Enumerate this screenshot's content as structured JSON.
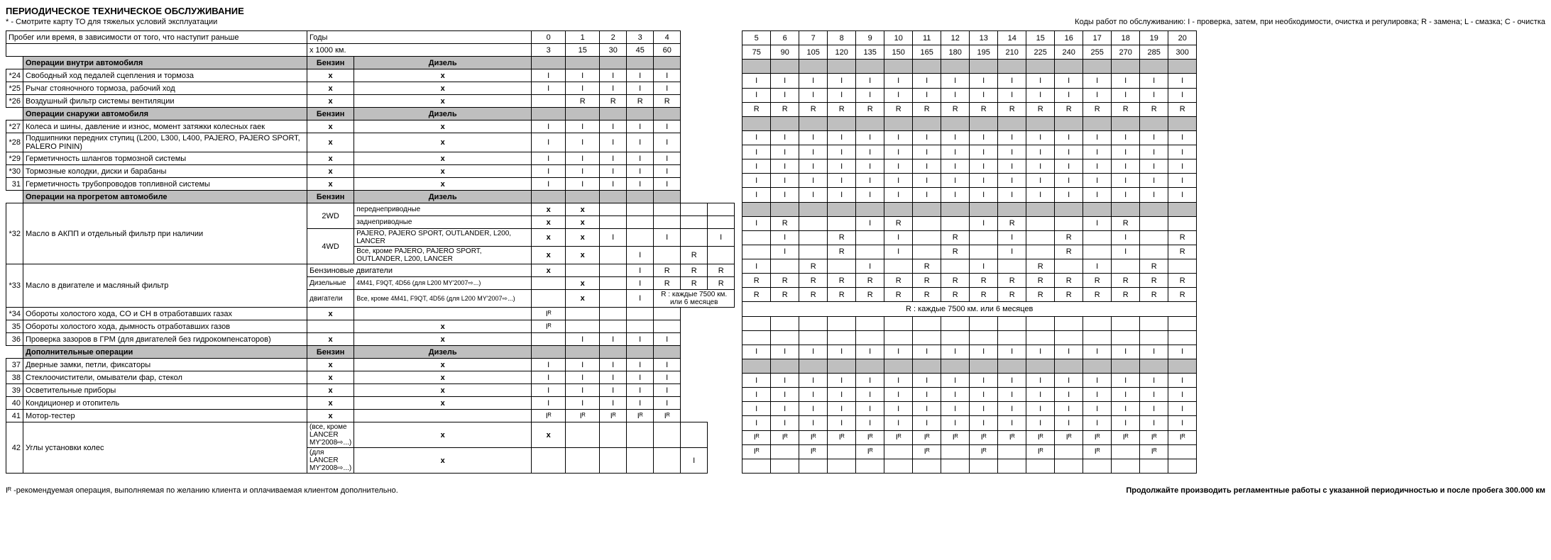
{
  "title": "ПЕРИОДИЧЕСКОЕ ТЕХНИЧЕСКОЕ ОБСЛУЖИВАНИЕ",
  "subtitle": "* - Смотрите карту ТО для тяжелых условий эксплуатации",
  "legend": "Коды работ по обслуживанию: I - проверка, затем, при необходимости, очистка и регулировка;  R - замена;  L - смазка;  C - очистка",
  "header_mileage": "Пробег или время, в зависимости от того, что наступит раньше",
  "header_years": "Годы",
  "header_km": "х 1000 км.",
  "fuel_b": "Бензин",
  "fuel_d": "Дизель",
  "years_left": [
    "0",
    "1",
    "2",
    "3",
    "4"
  ],
  "years_right": [
    "5",
    "6",
    "7",
    "8",
    "9",
    "10",
    "11",
    "12",
    "13",
    "14",
    "15",
    "16",
    "17",
    "18",
    "19",
    "20"
  ],
  "km_left": [
    "3",
    "15",
    "30",
    "45",
    "60"
  ],
  "km_right": [
    "75",
    "90",
    "105",
    "120",
    "135",
    "150",
    "165",
    "180",
    "195",
    "210",
    "225",
    "240",
    "255",
    "270",
    "285",
    "300"
  ],
  "sections": {
    "s1": "Операции внутри автомобиля",
    "s2": "Операции снаружи автомобиля",
    "s3": "Операции на прогретом автомобиле",
    "s4": "Дополнительные операции"
  },
  "rows": [
    {
      "n": "*24",
      "desc": "Свободный ход педалей сцепления и тормоза",
      "b": "x",
      "d": "x",
      "l": [
        "I",
        "I",
        "I",
        "I",
        "I"
      ],
      "r": [
        "I",
        "I",
        "I",
        "I",
        "I",
        "I",
        "I",
        "I",
        "I",
        "I",
        "I",
        "I",
        "I",
        "I",
        "I",
        "I"
      ]
    },
    {
      "n": "*25",
      "desc": "Рычаг стояночного тормоза, рабочий ход",
      "b": "x",
      "d": "x",
      "l": [
        "I",
        "I",
        "I",
        "I",
        "I"
      ],
      "r": [
        "I",
        "I",
        "I",
        "I",
        "I",
        "I",
        "I",
        "I",
        "I",
        "I",
        "I",
        "I",
        "I",
        "I",
        "I",
        "I"
      ]
    },
    {
      "n": "*26",
      "desc": "Воздушный фильтр системы вентиляции",
      "b": "x",
      "d": "x",
      "l": [
        "",
        "R",
        "R",
        "R",
        "R"
      ],
      "r": [
        "R",
        "R",
        "R",
        "R",
        "R",
        "R",
        "R",
        "R",
        "R",
        "R",
        "R",
        "R",
        "R",
        "R",
        "R",
        "R"
      ]
    },
    {
      "n": "*27",
      "desc": "Колеса и шины, давление и износ, момент затяжки колесных гаек",
      "b": "x",
      "d": "x",
      "l": [
        "I",
        "I",
        "I",
        "I",
        "I"
      ],
      "r": [
        "I",
        "I",
        "I",
        "I",
        "I",
        "I",
        "I",
        "I",
        "I",
        "I",
        "I",
        "I",
        "I",
        "I",
        "I",
        "I"
      ]
    },
    {
      "n": "*28",
      "desc": "Подшипники передних ступиц (L200, L300, L400, PAJERO, PAJERO SPORT, PALERO PININ)",
      "b": "x",
      "d": "x",
      "l": [
        "I",
        "I",
        "I",
        "I",
        "I"
      ],
      "r": [
        "I",
        "I",
        "I",
        "I",
        "I",
        "I",
        "I",
        "I",
        "I",
        "I",
        "I",
        "I",
        "I",
        "I",
        "I",
        "I"
      ]
    },
    {
      "n": "*29",
      "desc": "Герметичность шлангов тормозной системы",
      "b": "x",
      "d": "x",
      "l": [
        "I",
        "I",
        "I",
        "I",
        "I"
      ],
      "r": [
        "I",
        "I",
        "I",
        "I",
        "I",
        "I",
        "I",
        "I",
        "I",
        "I",
        "I",
        "I",
        "I",
        "I",
        "I",
        "I"
      ]
    },
    {
      "n": "*30",
      "desc": "Тормозные колодки, диски и барабаны",
      "b": "x",
      "d": "x",
      "l": [
        "I",
        "I",
        "I",
        "I",
        "I"
      ],
      "r": [
        "I",
        "I",
        "I",
        "I",
        "I",
        "I",
        "I",
        "I",
        "I",
        "I",
        "I",
        "I",
        "I",
        "I",
        "I",
        "I"
      ]
    },
    {
      "n": "31",
      "desc": "Герметичность трубопроводов топливной системы",
      "b": "x",
      "d": "x",
      "l": [
        "I",
        "I",
        "I",
        "I",
        "I"
      ],
      "r": [
        "I",
        "I",
        "I",
        "I",
        "I",
        "I",
        "I",
        "I",
        "I",
        "I",
        "I",
        "I",
        "I",
        "I",
        "I",
        "I"
      ]
    }
  ],
  "row32": {
    "n": "*32",
    "label": "Масло в АКПП и отдельный фильтр при наличии",
    "sub": [
      {
        "dr": "2WD",
        "veh": "переднеприводные",
        "b": "x",
        "d": "x",
        "l": [
          "",
          "",
          "",
          "",
          ""
        ],
        "r": [
          "I",
          "R",
          "",
          "",
          "I",
          "R",
          "",
          "",
          "I",
          "R",
          "",
          "",
          "I",
          "R",
          "",
          ""
        ]
      },
      {
        "dr": "",
        "veh": "заднеприводные",
        "b": "x",
        "d": "x",
        "l": [
          "",
          "",
          "",
          "",
          ""
        ],
        "r": [
          "",
          "I",
          "",
          "R",
          "",
          "I",
          "",
          "R",
          "",
          "I",
          "",
          "R",
          "",
          "I",
          "",
          "R"
        ]
      },
      {
        "dr": "4WD",
        "veh": "PAJERO, PAJERO SPORT, OUTLANDER, L200, LANCER",
        "b": "x",
        "d": "x",
        "l": [
          "I",
          "",
          "I",
          "",
          "I"
        ],
        "r": [
          "",
          "I",
          "",
          "R",
          "",
          "I",
          "",
          "R",
          "",
          "I",
          "",
          "R",
          "",
          "I",
          "",
          "R"
        ]
      },
      {
        "dr": "",
        "veh": "Все, кроме PAJERO, PAJERO SPORT, OUTLANDER, L200, LANCER",
        "b": "x",
        "d": "x",
        "l": [
          "",
          "I",
          "",
          "R",
          ""
        ],
        "r": [
          "I",
          "",
          "R",
          "",
          "I",
          "",
          "R",
          "",
          "I",
          "",
          "R",
          "",
          "I",
          "",
          "R",
          ""
        ]
      }
    ]
  },
  "row33": {
    "n": "*33",
    "label": "Масло в двигателе и масляный фильтр",
    "sub": [
      {
        "type": "Бензиновые двигатели",
        "b": "x",
        "d": "",
        "l": [
          "",
          "I",
          "R",
          "R",
          "R"
        ],
        "r": [
          "R",
          "R",
          "R",
          "R",
          "R",
          "R",
          "R",
          "R",
          "R",
          "R",
          "R",
          "R",
          "R",
          "R",
          "R",
          "R"
        ]
      },
      {
        "type": "Дизельные",
        "eng": "4M41, F9QT, 4D56 (для L200 MY'2007⇨...)",
        "b": "",
        "d": "x",
        "l": [
          "",
          "I",
          "R",
          "R",
          "R"
        ],
        "r": [
          "R",
          "R",
          "R",
          "R",
          "R",
          "R",
          "R",
          "R",
          "R",
          "R",
          "R",
          "R",
          "R",
          "R",
          "R",
          "R"
        ]
      },
      {
        "type": "двигатели",
        "eng": "Все, кроме 4M41, F9QT, 4D56 (для L200 MY'2007⇨...)",
        "b": "",
        "d": "x",
        "l": [
          "",
          "I"
        ],
        "l_merged": "R : каждые 7500 км. или 6 месяцев",
        "r_merged": "R : каждые 7500 км. или 6 месяцев"
      }
    ]
  },
  "rows2": [
    {
      "n": "*34",
      "desc": "Обороты холостого хода, CO и CH в отработавших газах",
      "b": "x",
      "d": "",
      "l": [
        "Iᴿ",
        "",
        "",
        "",
        ""
      ],
      "r": [
        "",
        "",
        "",
        "",
        "",
        "",
        "",
        "",
        "",
        "",
        "",
        "",
        "",
        "",
        "",
        ""
      ]
    },
    {
      "n": "35",
      "desc": "Обороты холостого хода, дымность отработавших газов",
      "b": "",
      "d": "x",
      "l": [
        "Iᴿ",
        "",
        "",
        "",
        ""
      ],
      "r": [
        "",
        "",
        "",
        "",
        "",
        "",
        "",
        "",
        "",
        "",
        "",
        "",
        "",
        "",
        "",
        ""
      ]
    },
    {
      "n": "36",
      "desc": "Проверка зазоров в ГРМ (для двигателей без гидрокомпенсаторов)",
      "b": "x",
      "d": "x",
      "l": [
        "",
        "I",
        "I",
        "I",
        "I"
      ],
      "r": [
        "I",
        "I",
        "I",
        "I",
        "I",
        "I",
        "I",
        "I",
        "I",
        "I",
        "I",
        "I",
        "I",
        "I",
        "I",
        "I"
      ]
    }
  ],
  "rows3": [
    {
      "n": "37",
      "desc": "Дверные замки, петли, фиксаторы",
      "b": "x",
      "d": "x",
      "l": [
        "I",
        "I",
        "I",
        "I",
        "I"
      ],
      "r": [
        "I",
        "I",
        "I",
        "I",
        "I",
        "I",
        "I",
        "I",
        "I",
        "I",
        "I",
        "I",
        "I",
        "I",
        "I",
        "I"
      ]
    },
    {
      "n": "38",
      "desc": "Стеклоочистители, омыватели фар, стекол",
      "b": "x",
      "d": "x",
      "l": [
        "I",
        "I",
        "I",
        "I",
        "I"
      ],
      "r": [
        "I",
        "I",
        "I",
        "I",
        "I",
        "I",
        "I",
        "I",
        "I",
        "I",
        "I",
        "I",
        "I",
        "I",
        "I",
        "I"
      ]
    },
    {
      "n": "39",
      "desc": "Осветительные приборы",
      "b": "x",
      "d": "x",
      "l": [
        "I",
        "I",
        "I",
        "I",
        "I"
      ],
      "r": [
        "I",
        "I",
        "I",
        "I",
        "I",
        "I",
        "I",
        "I",
        "I",
        "I",
        "I",
        "I",
        "I",
        "I",
        "I",
        "I"
      ]
    },
    {
      "n": "40",
      "desc": "Кондиционер и отопитель",
      "b": "x",
      "d": "x",
      "l": [
        "I",
        "I",
        "I",
        "I",
        "I"
      ],
      "r": [
        "I",
        "I",
        "I",
        "I",
        "I",
        "I",
        "I",
        "I",
        "I",
        "I",
        "I",
        "I",
        "I",
        "I",
        "I",
        "I"
      ]
    },
    {
      "n": "41",
      "desc": "Мотор-тестер",
      "b": "x",
      "d": "",
      "l": [
        "Iᴿ",
        "Iᴿ",
        "Iᴿ",
        "Iᴿ",
        "Iᴿ"
      ],
      "r": [
        "Iᴿ",
        "Iᴿ",
        "Iᴿ",
        "Iᴿ",
        "Iᴿ",
        "Iᴿ",
        "Iᴿ",
        "Iᴿ",
        "Iᴿ",
        "Iᴿ",
        "Iᴿ",
        "Iᴿ",
        "Iᴿ",
        "Iᴿ",
        "Iᴿ",
        "Iᴿ"
      ]
    }
  ],
  "row42": {
    "n": "42",
    "label": "Углы установки колес",
    "sub": [
      {
        "veh": "(все, кроме LANCER MY'2008⇨...)",
        "b": "x",
        "d": "x",
        "l": [
          "",
          "",
          "",
          "",
          ""
        ],
        "r": [
          "Iᴿ",
          "",
          "Iᴿ",
          "",
          "Iᴿ",
          "",
          "Iᴿ",
          "",
          "Iᴿ",
          "",
          "Iᴿ",
          "",
          "Iᴿ",
          "",
          "Iᴿ",
          ""
        ]
      },
      {
        "veh": "(для LANCER MY'2008⇨...)",
        "b": "x",
        "d": "",
        "l": [
          "",
          "",
          "",
          "",
          "I"
        ],
        "r": [
          "",
          "",
          "",
          "",
          "",
          "",
          "",
          "",
          "",
          "",
          "",
          "",
          "",
          "",
          "",
          ""
        ]
      }
    ]
  },
  "footnote_left": "Iᴿ -рекомендуемая операция, выполняемая по желанию клиента и оплачиваемая клиентом дополнительно.",
  "footnote_right": "Продолжайте производить регламентные работы с указанной периодичностью и после пробега 300.000 км"
}
